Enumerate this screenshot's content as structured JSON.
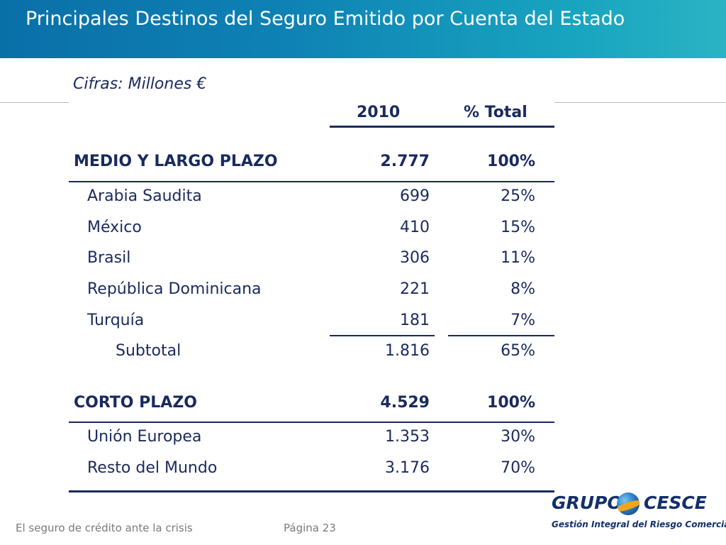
{
  "header": {
    "title": "Principales Destinos del Seguro Emitido por Cuenta del Estado"
  },
  "units": "Cifras: Millones €",
  "table": {
    "col_year": "2010",
    "col_pct": "% Total",
    "medio": {
      "label": "MEDIO Y LARGO PLAZO",
      "value": "2.777",
      "pct": "100%",
      "rows": [
        {
          "label": "Arabia Saudita",
          "value": "699",
          "pct": "25%"
        },
        {
          "label": "México",
          "value": "410",
          "pct": "15%"
        },
        {
          "label": "Brasil",
          "value": "306",
          "pct": "11%"
        },
        {
          "label": "República Dominicana",
          "value": "221",
          "pct": "8%"
        },
        {
          "label": "Turquía",
          "value": "181",
          "pct": "7%"
        }
      ],
      "subtotal": {
        "label": "Subtotal",
        "value": "1.816",
        "pct": "65%"
      }
    },
    "corto": {
      "label": "CORTO PLAZO",
      "value": "4.529",
      "pct": "100%",
      "rows": [
        {
          "label": "Unión Europea",
          "value": "1.353",
          "pct": "30%"
        },
        {
          "label": "Resto del Mundo",
          "value": "3.176",
          "pct": "70%"
        }
      ]
    }
  },
  "footer": {
    "left": "El seguro de crédito ante la crisis",
    "page": "Página 23"
  },
  "logo": {
    "name_left": "GRUPO",
    "name_right": "CESCE",
    "tagline": "Gestión Integral del Riesgo Comercial"
  }
}
